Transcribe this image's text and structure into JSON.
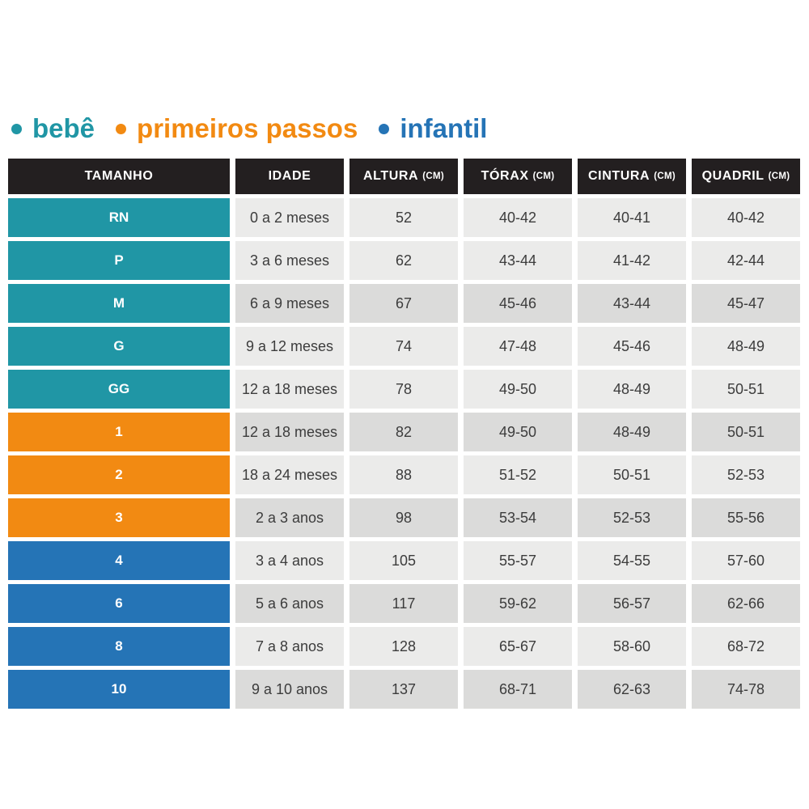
{
  "colors": {
    "teal": "#2096a5",
    "orange": "#f28a12",
    "blue": "#2574b6",
    "header_bg": "#231f20",
    "row_light": "#ebebea",
    "row_dark": "#dbdbda",
    "cell_text": "#3c3c3c",
    "label_text": "#ffffff"
  },
  "chart_data": {
    "type": "table",
    "legend": [
      {
        "label": "bebê",
        "color": "#2096a5"
      },
      {
        "label": "primeiros passos",
        "color": "#f28a12"
      },
      {
        "label": "infantil",
        "color": "#2574b6"
      }
    ],
    "columns": [
      {
        "label": "TAMANHO",
        "unit": ""
      },
      {
        "label": "IDADE",
        "unit": ""
      },
      {
        "label": "ALTURA",
        "unit": "(CM)"
      },
      {
        "label": "TÓRAX",
        "unit": "(CM)"
      },
      {
        "label": "CINTURA",
        "unit": "(CM)"
      },
      {
        "label": "QUADRIL",
        "unit": "(CM)"
      }
    ],
    "rows": [
      [
        "RN",
        "0 a 2 meses",
        "52",
        "40-42",
        "40-41",
        "40-42"
      ],
      [
        "P",
        "3 a 6 meses",
        "62",
        "43-44",
        "41-42",
        "42-44"
      ],
      [
        "M",
        "6 a 9 meses",
        "67",
        "45-46",
        "43-44",
        "45-47"
      ],
      [
        "G",
        "9 a 12 meses",
        "74",
        "47-48",
        "45-46",
        "48-49"
      ],
      [
        "GG",
        "12 a 18 meses",
        "78",
        "49-50",
        "48-49",
        "50-51"
      ],
      [
        "1",
        "12 a 18 meses",
        "82",
        "49-50",
        "48-49",
        "50-51"
      ],
      [
        "2",
        "18 a 24 meses",
        "88",
        "51-52",
        "50-51",
        "52-53"
      ],
      [
        "3",
        "2 a 3 anos",
        "98",
        "53-54",
        "52-53",
        "55-56"
      ],
      [
        "4",
        "3 a 4 anos",
        "105",
        "55-57",
        "54-55",
        "57-60"
      ],
      [
        "6",
        "5 a 6 anos",
        "117",
        "59-62",
        "56-57",
        "62-66"
      ],
      [
        "8",
        "7 a 8 anos",
        "128",
        "65-67",
        "58-60",
        "68-72"
      ],
      [
        "10",
        "9 a 10 anos",
        "137",
        "68-71",
        "62-63",
        "74-78"
      ]
    ],
    "row_groups": {
      "bebê": [
        "RN",
        "P",
        "M",
        "G",
        "GG"
      ],
      "primeiros passos": [
        "1",
        "2",
        "3"
      ],
      "infantil": [
        "4",
        "6",
        "8",
        "10"
      ]
    }
  }
}
